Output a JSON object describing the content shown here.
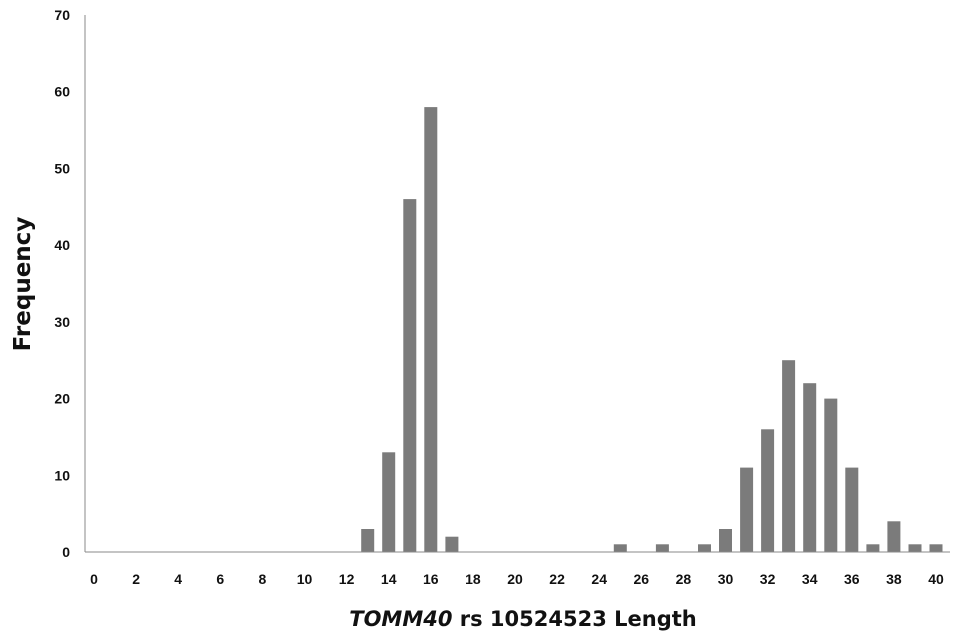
{
  "chart_data": {
    "type": "bar",
    "title": "",
    "xlabel_italic": "TOMM40",
    "xlabel_rest": " rs 10524523 Length",
    "ylabel": "Frequency",
    "xlim": [
      0,
      40
    ],
    "ylim": [
      0,
      70
    ],
    "x_ticks": [
      0,
      2,
      4,
      6,
      8,
      10,
      12,
      14,
      16,
      18,
      20,
      22,
      24,
      26,
      28,
      30,
      32,
      34,
      36,
      38,
      40
    ],
    "y_ticks": [
      0,
      10,
      20,
      30,
      40,
      50,
      60,
      70
    ],
    "x": [
      13,
      14,
      15,
      16,
      17,
      25,
      27,
      29,
      30,
      31,
      32,
      33,
      34,
      35,
      36,
      37,
      38,
      39,
      40
    ],
    "values": [
      3,
      13,
      46,
      58,
      2,
      1,
      1,
      1,
      3,
      11,
      16,
      25,
      22,
      20,
      11,
      1,
      4,
      1,
      1
    ],
    "grid": false,
    "bar_color": "#7b7b7b"
  }
}
